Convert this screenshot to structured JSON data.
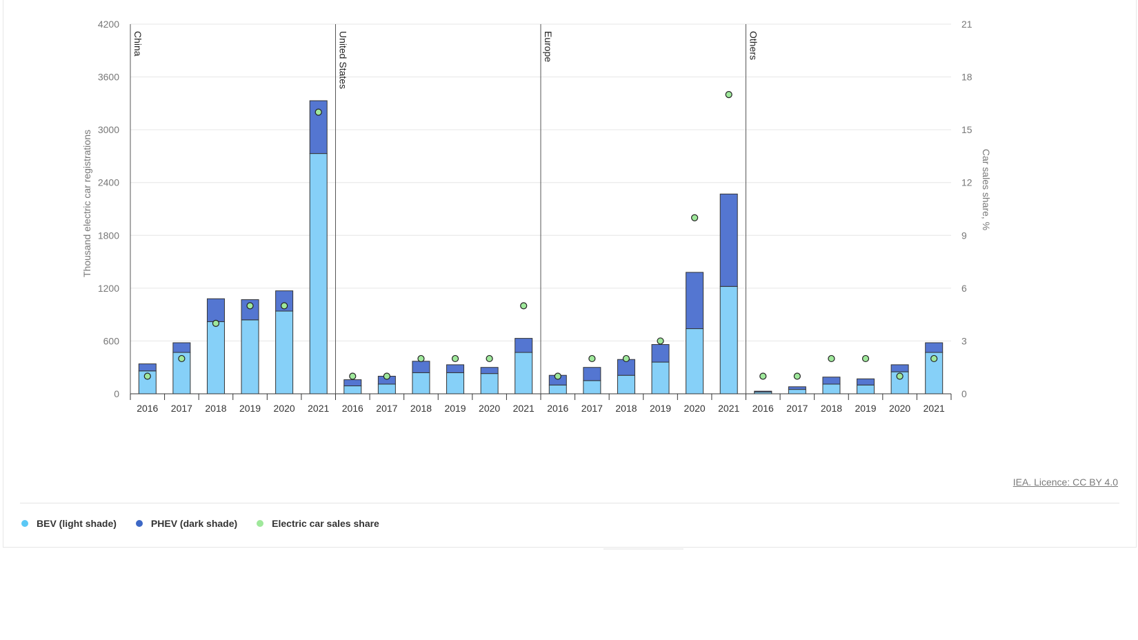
{
  "chart_data": {
    "type": "bar",
    "stacked": true,
    "panels": [
      "China",
      "United States",
      "Europe",
      "Others"
    ],
    "years": [
      "2016",
      "2017",
      "2018",
      "2019",
      "2020",
      "2021"
    ],
    "series": [
      {
        "name": "BEV (light shade)",
        "color": "#86d0f8",
        "values": {
          "China": [
            260,
            470,
            820,
            840,
            940,
            2730
          ],
          "United States": [
            90,
            110,
            240,
            240,
            230,
            470
          ],
          "Europe": [
            100,
            150,
            210,
            360,
            740,
            1220
          ],
          "Others": [
            20,
            50,
            110,
            100,
            250,
            470
          ]
        }
      },
      {
        "name": "PHEV (dark shade)",
        "color": "#5476d1",
        "values": {
          "China": [
            80,
            110,
            260,
            230,
            230,
            600
          ],
          "United States": [
            70,
            90,
            130,
            90,
            70,
            160
          ],
          "Europe": [
            110,
            150,
            180,
            200,
            640,
            1050
          ],
          "Others": [
            10,
            30,
            80,
            70,
            80,
            110
          ]
        }
      },
      {
        "name": "Electric car sales share",
        "color": "#9fe89b",
        "axis": "right",
        "values": {
          "China": [
            1,
            2,
            4,
            5,
            5,
            16
          ],
          "United States": [
            1,
            1,
            2,
            2,
            2,
            5
          ],
          "Europe": [
            1,
            2,
            2,
            3,
            10,
            17
          ],
          "Others": [
            1,
            1,
            2,
            2,
            1,
            2
          ]
        }
      }
    ],
    "ylabel": "Thousand electric car registrations",
    "ylabel_right": "Car sales share, %",
    "ylim": [
      0,
      4200
    ],
    "ylim_right": [
      0,
      21
    ],
    "yticks": [
      "0",
      "600",
      "1200",
      "1800",
      "2400",
      "3000",
      "3600",
      "4200"
    ],
    "yticks_right": [
      "0",
      "3",
      "6",
      "9",
      "12",
      "15",
      "18",
      "21"
    ],
    "grid": true
  },
  "source": "IEA. Licence: CC BY 4.0",
  "legend": [
    {
      "label": "BEV (light shade)",
      "color": "#5bc8f5"
    },
    {
      "label": "PHEV (dark shade)",
      "color": "#3d68c6"
    },
    {
      "label": "Electric car sales share",
      "color": "#9fe89b"
    }
  ]
}
